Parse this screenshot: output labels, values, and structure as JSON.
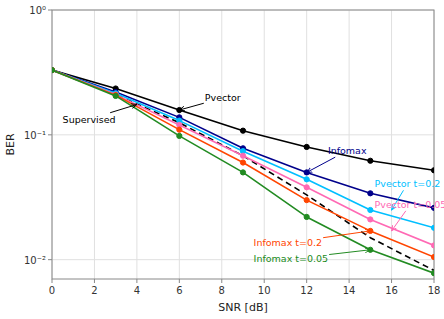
{
  "chart_data": {
    "type": "line",
    "x": [
      0,
      3,
      6,
      9,
      12,
      15,
      18
    ],
    "series": [
      {
        "color": "#000000",
        "line_style": "dashed",
        "marker": "none",
        "values": [
          0.33,
          0.21,
          0.125,
          0.068,
          0.033,
          0.015,
          0.0082
        ]
      },
      {
        "color": "#000000",
        "line_style": "solid",
        "marker": "circle",
        "values": [
          0.33,
          0.235,
          0.158,
          0.108,
          0.08,
          0.062,
          0.052
        ]
      },
      {
        "color": "#00008B",
        "line_style": "solid",
        "marker": "circle",
        "values": [
          0.33,
          0.22,
          0.138,
          0.078,
          0.05,
          0.034,
          0.026
        ]
      },
      {
        "color": "#00BFFF",
        "line_style": "solid",
        "marker": "circle",
        "values": [
          0.33,
          0.215,
          0.13,
          0.074,
          0.044,
          0.025,
          0.018
        ]
      },
      {
        "color": "#FF69B4",
        "line_style": "solid",
        "marker": "circle",
        "values": [
          0.33,
          0.21,
          0.12,
          0.068,
          0.038,
          0.021,
          0.013
        ]
      },
      {
        "color": "#FF4500",
        "line_style": "solid",
        "marker": "circle",
        "values": [
          0.33,
          0.208,
          0.11,
          0.06,
          0.03,
          0.017,
          0.0105
        ]
      },
      {
        "color": "#228B22",
        "line_style": "solid",
        "marker": "circle",
        "values": [
          0.33,
          0.205,
          0.098,
          0.05,
          0.022,
          0.012,
          0.0078
        ]
      }
    ],
    "xlabel": "SNR [dB]",
    "ylabel": "BER",
    "xlim": [
      0,
      18
    ],
    "ylim": [
      0.007,
      1.0
    ],
    "xticks": [
      0,
      2,
      4,
      6,
      8,
      10,
      12,
      14,
      16,
      18
    ],
    "yticks": [
      {
        "value": 0.01,
        "label": "10⁻²"
      },
      {
        "value": 0.1,
        "label": "10⁻¹"
      },
      {
        "value": 1,
        "label": "10⁰"
      }
    ],
    "log": "y",
    "grid": true,
    "annotations": [
      {
        "text": "Pvector",
        "x": 6,
        "y": 0.158,
        "text_x": 7.2,
        "text_y": 0.185,
        "color": "#000000"
      },
      {
        "text": "Supervised",
        "x": 4,
        "y": 0.175,
        "text_x": 0.5,
        "text_y": 0.125,
        "color": "#000000"
      },
      {
        "text": "Infomax",
        "x": 12,
        "y": 0.05,
        "text_x": 13.0,
        "text_y": 0.07,
        "color": "#00008B"
      },
      {
        "text": "Pvector t=0.2",
        "x": 16,
        "y": 0.025,
        "text_x": 15.2,
        "text_y": 0.038,
        "color": "#00BFFF"
      },
      {
        "text": "Pvector t=0.05",
        "x": 16,
        "y": 0.017,
        "text_x": 15.2,
        "text_y": 0.026,
        "color": "#FF69B4"
      },
      {
        "text": "Infomax t=0.2",
        "x": 15,
        "y": 0.017,
        "text_x": 9.5,
        "text_y": 0.0128,
        "color": "#FF4500"
      },
      {
        "text": "Infomax t=0.05",
        "x": 15,
        "y": 0.012,
        "text_x": 9.5,
        "text_y": 0.0095,
        "color": "#228B22"
      }
    ]
  }
}
